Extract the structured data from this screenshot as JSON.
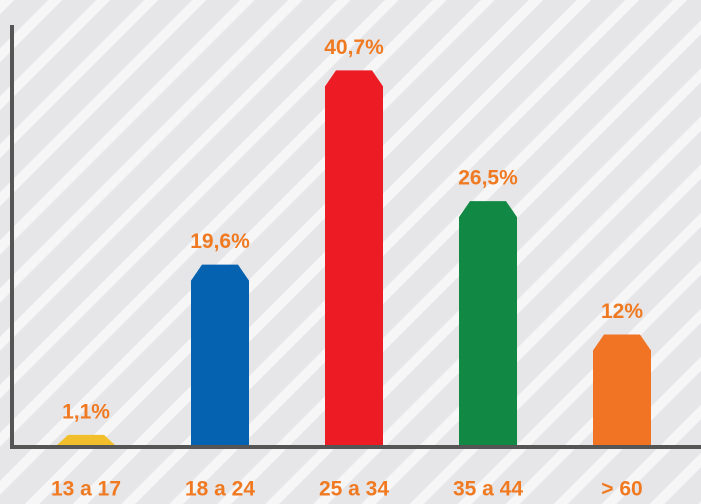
{
  "chart_data": {
    "type": "bar",
    "categories": [
      "13 a 17",
      "18 a 24",
      "25 a 34",
      "35 a 44",
      "> 60"
    ],
    "values": [
      1.1,
      19.6,
      40.7,
      26.5,
      12
    ],
    "value_labels": [
      "1,1%",
      "19,6%",
      "40,7%",
      "26,5%",
      "12%"
    ],
    "colors": [
      "#f0bf2b",
      "#0562b0",
      "#ed1c24",
      "#118843",
      "#f07423"
    ],
    "ylim": [
      0,
      44
    ]
  }
}
